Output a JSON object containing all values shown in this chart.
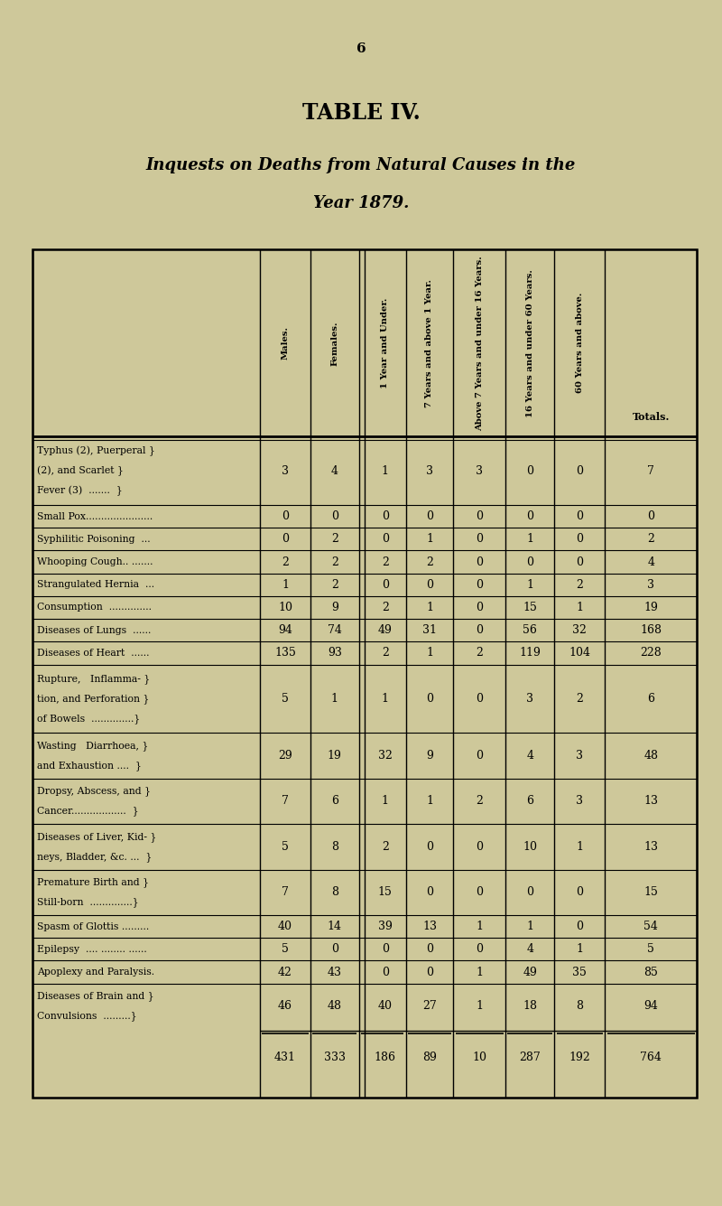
{
  "page_number": "6",
  "title": "TABLE IV.",
  "subtitle_line1": "Inquests on Deaths from Natural Causes in the",
  "subtitle_line2": "Year 1879.",
  "bg_color": "#cec89a",
  "col_headers": [
    "Males.",
    "Females.",
    "1 Year and Under.",
    "7 Years and above 1 Year.",
    "Above 7 Years and under 16 Years.",
    "16 Years and under 60 Years.",
    "60 Years and above.",
    "Totals."
  ],
  "row_labels": [
    [
      "Typhus (2), Puerperal }",
      "(2), and Scarlet }",
      "Fever (3)  .......  }"
    ],
    [
      "Small Pox......................"
    ],
    [
      "Syphilitic Poisoning  ..."
    ],
    [
      "Whooping Cough.. ......."
    ],
    [
      "Strangulated Hernia  ..."
    ],
    [
      "Consumption  .............."
    ],
    [
      "Diseases of Lungs  ......"
    ],
    [
      "Diseases of Heart  ......"
    ],
    [
      "Rupture,   Inflamma- }",
      "tion, and Perforation }",
      "of Bowels  ..............}"
    ],
    [
      "Wasting   Diarrhoea, }",
      "and Exhaustion ....  }"
    ],
    [
      "Dropsy, Abscess, and }",
      "Cancer..................  }"
    ],
    [
      "Diseases of Liver, Kid- }",
      "neys, Bladder, &c. ...  }"
    ],
    [
      "Premature Birth and }",
      "Still-born  ..............}"
    ],
    [
      "Spasm of Glottis ........."
    ],
    [
      "Epilepsy  .... ........ ......"
    ],
    [
      "Apoplexy and Paralysis."
    ],
    [
      "Diseases of Brain and }",
      "Convulsions  .........}"
    ]
  ],
  "data": [
    [
      3,
      4,
      1,
      3,
      3,
      0,
      0,
      7
    ],
    [
      0,
      0,
      0,
      0,
      0,
      0,
      0,
      0
    ],
    [
      0,
      2,
      0,
      1,
      0,
      1,
      0,
      2
    ],
    [
      2,
      2,
      2,
      2,
      0,
      0,
      0,
      4
    ],
    [
      1,
      2,
      0,
      0,
      0,
      1,
      2,
      3
    ],
    [
      10,
      9,
      2,
      1,
      0,
      15,
      1,
      19
    ],
    [
      94,
      74,
      49,
      31,
      0,
      56,
      32,
      168
    ],
    [
      135,
      93,
      2,
      1,
      2,
      119,
      104,
      228
    ],
    [
      5,
      1,
      1,
      0,
      0,
      3,
      2,
      6
    ],
    [
      29,
      19,
      32,
      9,
      0,
      4,
      3,
      48
    ],
    [
      7,
      6,
      1,
      1,
      2,
      6,
      3,
      13
    ],
    [
      5,
      8,
      2,
      0,
      0,
      10,
      1,
      13
    ],
    [
      7,
      8,
      15,
      0,
      0,
      0,
      0,
      15
    ],
    [
      40,
      14,
      39,
      13,
      1,
      1,
      0,
      54
    ],
    [
      5,
      0,
      0,
      0,
      0,
      4,
      1,
      5
    ],
    [
      42,
      43,
      0,
      0,
      1,
      49,
      35,
      85
    ],
    [
      46,
      48,
      40,
      27,
      1,
      18,
      8,
      94
    ]
  ],
  "totals_row": [
    431,
    333,
    186,
    89,
    10,
    287,
    192,
    764
  ],
  "row_line_counts": [
    3,
    1,
    1,
    1,
    1,
    1,
    1,
    1,
    3,
    2,
    2,
    2,
    2,
    1,
    1,
    1,
    2
  ]
}
